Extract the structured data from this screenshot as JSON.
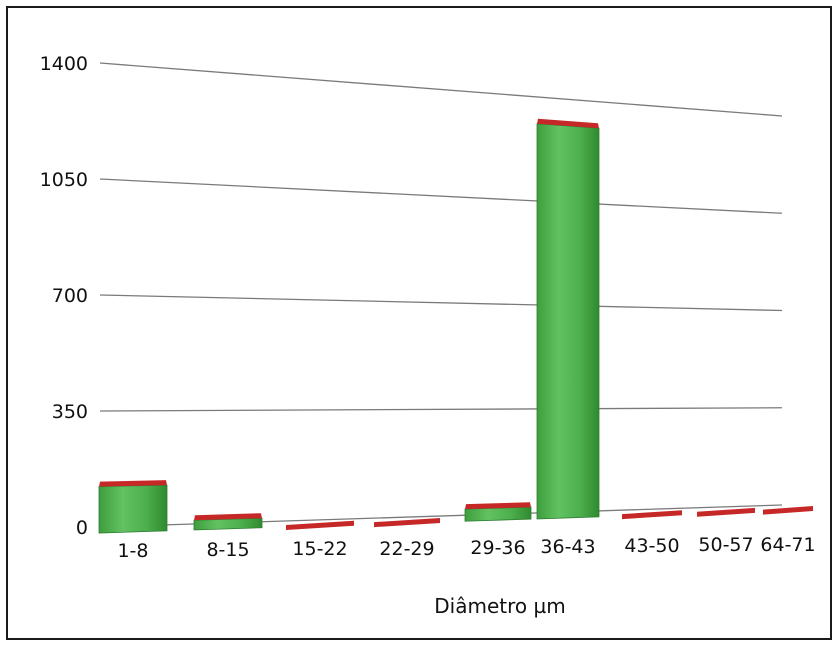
{
  "chart_data": {
    "type": "bar",
    "title": "",
    "xlabel": "Diâmetro µm",
    "ylabel": "",
    "categories": [
      "1-8",
      "8-15",
      "15-22",
      "22-29",
      "29-36",
      "36-43",
      "43-50",
      "50-57",
      "64-71"
    ],
    "values": [
      140,
      30,
      8,
      10,
      40,
      1330,
      5,
      5,
      5
    ],
    "yticks": [
      0,
      350,
      700,
      1050,
      1400
    ],
    "ylim": [
      0,
      1400
    ],
    "grid": true,
    "legend": "none",
    "colors": {
      "bar_face": "#4cae4c",
      "bar_dark": "#2e7d32",
      "bar_top": "#c62828",
      "grid": "#7a7a7a"
    }
  }
}
